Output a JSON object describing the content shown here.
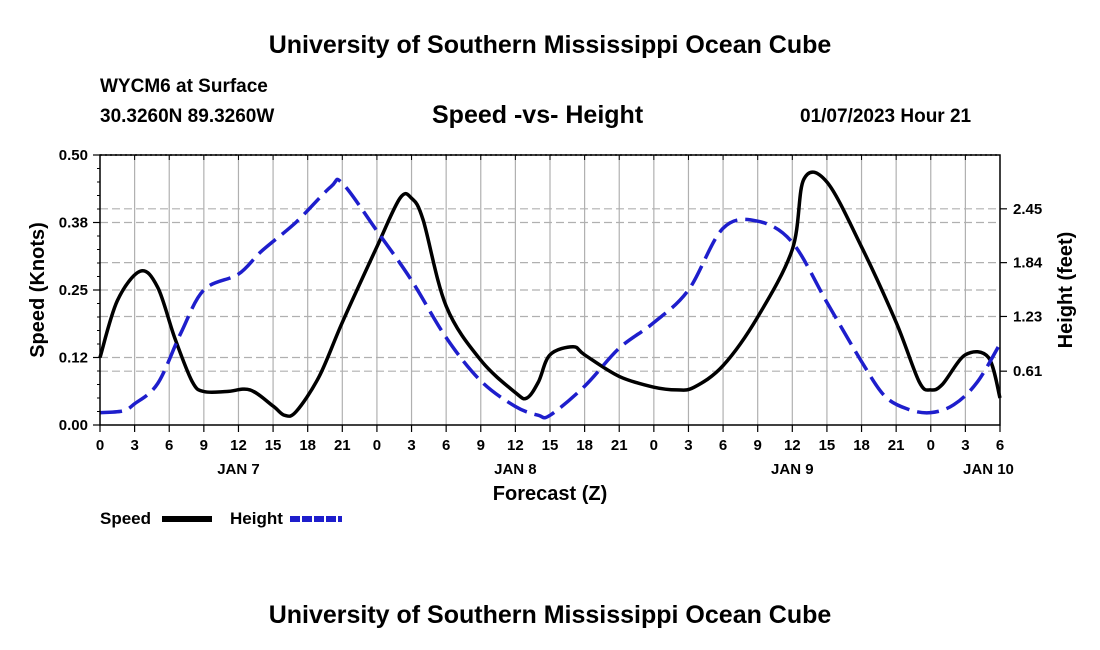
{
  "header": {
    "title_top": "University of Southern Mississippi Ocean Cube",
    "station": "WYCM6 at Surface",
    "location": "30.3260N  89.3260W",
    "date": "01/07/2023 Hour 21",
    "title_bottom": "University of Southern Mississippi Ocean Cube"
  },
  "legend": {
    "speed_label": "Speed",
    "height_label": "Height"
  },
  "colors": {
    "speed": "#000000",
    "height": "#1e1ecc",
    "grid": "#b0b0b0"
  },
  "chart_data": {
    "type": "line",
    "title": "Speed -vs- Height",
    "xlabel": "Forecast (Z)",
    "ylabel": "Speed (Knots)",
    "y2label": "Height (feet)",
    "xlim": [
      0,
      78
    ],
    "ylim": [
      0,
      0.5
    ],
    "y2lim": [
      0,
      3.06
    ],
    "x_ticks": [
      0,
      3,
      6,
      9,
      12,
      15,
      18,
      21,
      24,
      27,
      30,
      33,
      36,
      39,
      42,
      45,
      48,
      51,
      54,
      57,
      60,
      63,
      66,
      69,
      72,
      75,
      78
    ],
    "x_tick_labels": [
      "0",
      "3",
      "6",
      "9",
      "12",
      "15",
      "18",
      "21",
      "0",
      "3",
      "6",
      "9",
      "12",
      "15",
      "18",
      "21",
      "0",
      "3",
      "6",
      "9",
      "12",
      "15",
      "18",
      "21",
      "0",
      "3",
      "6"
    ],
    "day_labels": [
      {
        "x": 12,
        "label": "JAN 7"
      },
      {
        "x": 36,
        "label": "JAN 8"
      },
      {
        "x": 60,
        "label": "JAN 9"
      },
      {
        "x": 77,
        "label": "JAN 10"
      }
    ],
    "y_ticks": [
      0.0,
      0.125,
      0.25,
      0.375,
      0.5
    ],
    "y_tick_labels": [
      "0.00",
      "0.12",
      "0.25",
      "0.38",
      "0.50"
    ],
    "y2_ticks": [
      0.61,
      1.23,
      1.84,
      2.45
    ],
    "y2_tick_labels": [
      "0.61",
      "1.23",
      "1.84",
      "2.45"
    ],
    "series": [
      {
        "name": "Speed",
        "axis": "left",
        "style": "solid",
        "x": [
          0,
          1.5,
          3.5,
          5,
          6.5,
          8,
          9,
          11,
          13,
          15,
          16,
          17,
          19,
          21,
          24,
          26,
          27,
          28,
          30,
          33,
          36,
          37,
          38,
          39,
          41,
          42,
          45,
          48,
          50,
          51.5,
          54,
          57,
          60,
          61,
          63,
          66,
          69,
          71,
          72,
          73,
          75,
          77,
          78
        ],
        "values": [
          0.125,
          0.23,
          0.285,
          0.255,
          0.16,
          0.08,
          0.062,
          0.062,
          0.065,
          0.035,
          0.018,
          0.025,
          0.09,
          0.19,
          0.33,
          0.42,
          0.42,
          0.38,
          0.22,
          0.12,
          0.06,
          0.05,
          0.08,
          0.13,
          0.145,
          0.13,
          0.09,
          0.07,
          0.065,
          0.07,
          0.11,
          0.2,
          0.325,
          0.455,
          0.45,
          0.33,
          0.19,
          0.08,
          0.065,
          0.075,
          0.13,
          0.125,
          0.05
        ]
      },
      {
        "name": "Height",
        "axis": "right",
        "style": "dashed",
        "x": [
          0,
          2,
          3,
          5,
          7,
          9,
          12,
          14,
          17,
          20,
          21,
          24,
          27,
          30,
          33,
          36,
          38,
          39,
          42,
          45,
          48,
          51,
          54,
          57,
          60,
          63,
          66,
          68,
          70,
          72,
          74,
          76,
          78
        ],
        "values": [
          0.14,
          0.16,
          0.24,
          0.47,
          1.04,
          1.53,
          1.71,
          1.97,
          2.3,
          2.7,
          2.74,
          2.2,
          1.64,
          0.99,
          0.5,
          0.21,
          0.11,
          0.11,
          0.44,
          0.87,
          1.16,
          1.53,
          2.23,
          2.31,
          2.07,
          1.39,
          0.72,
          0.33,
          0.18,
          0.14,
          0.23,
          0.48,
          0.92
        ]
      }
    ]
  }
}
